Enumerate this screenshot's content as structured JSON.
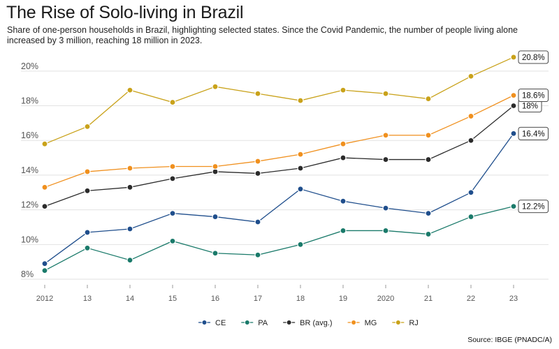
{
  "title": "The Rise of Solo-living in Brazil",
  "subtitle": "Share of one-person households in Brazil, highlighting selected states. Since the Covid Pandemic, the number of people living alone increased by 3 million, reaching 18 million in 2023.",
  "source": "Source: IBGE (PNADC/A)",
  "chart_data": {
    "type": "line",
    "x": [
      2012,
      2013,
      2014,
      2015,
      2016,
      2017,
      2018,
      2019,
      2020,
      2021,
      2022,
      2023
    ],
    "x_tick_labels": [
      "2012",
      "13",
      "14",
      "15",
      "16",
      "17",
      "18",
      "19",
      "2020",
      "21",
      "22",
      "23"
    ],
    "y_ticks": [
      8,
      10,
      12,
      14,
      16,
      18,
      20
    ],
    "y_tick_labels": [
      "8%",
      "10%",
      "12%",
      "14%",
      "16%",
      "18%",
      "20%"
    ],
    "ylim": [
      7.8,
      21.2
    ],
    "grid": "horizontal",
    "legend_position": "bottom",
    "series": [
      {
        "name": "CE",
        "color": "#1f4e8c",
        "values": [
          8.9,
          10.7,
          10.9,
          11.8,
          11.6,
          11.3,
          13.2,
          12.5,
          12.1,
          11.8,
          13.0,
          16.4
        ],
        "end_label": "16.4%"
      },
      {
        "name": "PA",
        "color": "#1a7a6a",
        "values": [
          8.5,
          9.8,
          9.1,
          10.2,
          9.5,
          9.4,
          10.0,
          10.8,
          10.8,
          10.6,
          11.6,
          12.2
        ],
        "end_label": "12.2%"
      },
      {
        "name": "BR (avg.)",
        "color": "#2b2b2b",
        "values": [
          12.2,
          13.1,
          13.3,
          13.8,
          14.2,
          14.1,
          14.4,
          15.0,
          14.9,
          14.9,
          16.0,
          18.0
        ],
        "end_label": "18%"
      },
      {
        "name": "MG",
        "color": "#f0901e",
        "values": [
          13.3,
          14.2,
          14.4,
          14.5,
          14.5,
          14.8,
          15.2,
          15.8,
          16.3,
          16.3,
          17.4,
          18.6
        ],
        "end_label": "18.6%"
      },
      {
        "name": "RJ",
        "color": "#c9a21a",
        "values": [
          15.8,
          16.8,
          18.9,
          18.2,
          19.1,
          18.7,
          18.3,
          18.9,
          18.7,
          18.4,
          19.7,
          20.8
        ],
        "end_label": "20.8%"
      }
    ]
  }
}
